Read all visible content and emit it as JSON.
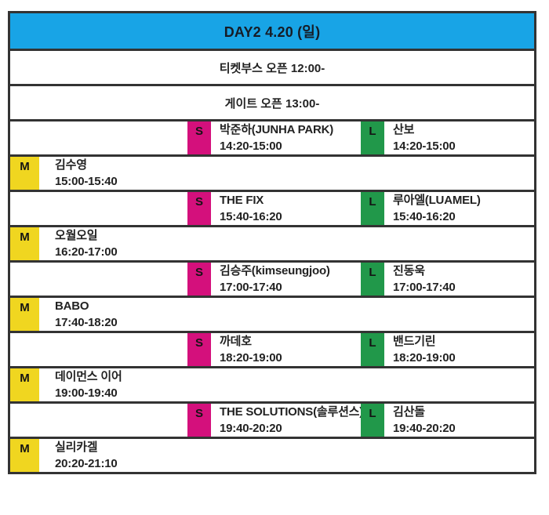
{
  "header": {
    "title": "DAY2 4.20 (일)"
  },
  "info_rows": {
    "ticket_booth": "티켓부스 오픈 12:00-",
    "gate": "게이트 오픈 13:00-"
  },
  "stage_labels": {
    "m": "M",
    "s": "S",
    "l": "L"
  },
  "colors": {
    "header_blue": "#18a4e6",
    "stage_m_yellow": "#f0d620",
    "stage_s_magenta": "#d4107c",
    "stage_l_green": "#21984a",
    "border_dark": "#333333"
  },
  "schedule": [
    {
      "type": "sl",
      "s": {
        "name": "박준하(JUNHA PARK)",
        "time": "14:20-15:00"
      },
      "l": {
        "name": "산보",
        "time": "14:20-15:00"
      }
    },
    {
      "type": "m",
      "m": {
        "name": "김수영",
        "time": "15:00-15:40"
      }
    },
    {
      "type": "sl",
      "s": {
        "name": "THE FIX",
        "time": "15:40-16:20"
      },
      "l": {
        "name": "루아엘(LUAMEL)",
        "time": "15:40-16:20"
      }
    },
    {
      "type": "m",
      "m": {
        "name": "오월오일",
        "time": "16:20-17:00"
      }
    },
    {
      "type": "sl",
      "s": {
        "name": "김승주(kimseungjoo)",
        "time": "17:00-17:40"
      },
      "l": {
        "name": "진동욱",
        "time": "17:00-17:40"
      }
    },
    {
      "type": "m",
      "m": {
        "name": "BABO",
        "time": "17:40-18:20"
      }
    },
    {
      "type": "sl",
      "s": {
        "name": "까데호",
        "time": "18:20-19:00"
      },
      "l": {
        "name": "밴드기린",
        "time": "18:20-19:00"
      }
    },
    {
      "type": "m",
      "m": {
        "name": "데이먼스 이어",
        "time": "19:00-19:40"
      }
    },
    {
      "type": "sl",
      "s": {
        "name": "THE SOLUTIONS(솔루션스)",
        "time": "19:40-20:20"
      },
      "l": {
        "name": "김산돌",
        "time": "19:40-20:20"
      }
    },
    {
      "type": "m",
      "m": {
        "name": "실리카겔",
        "time": "20:20-21:10"
      }
    }
  ]
}
